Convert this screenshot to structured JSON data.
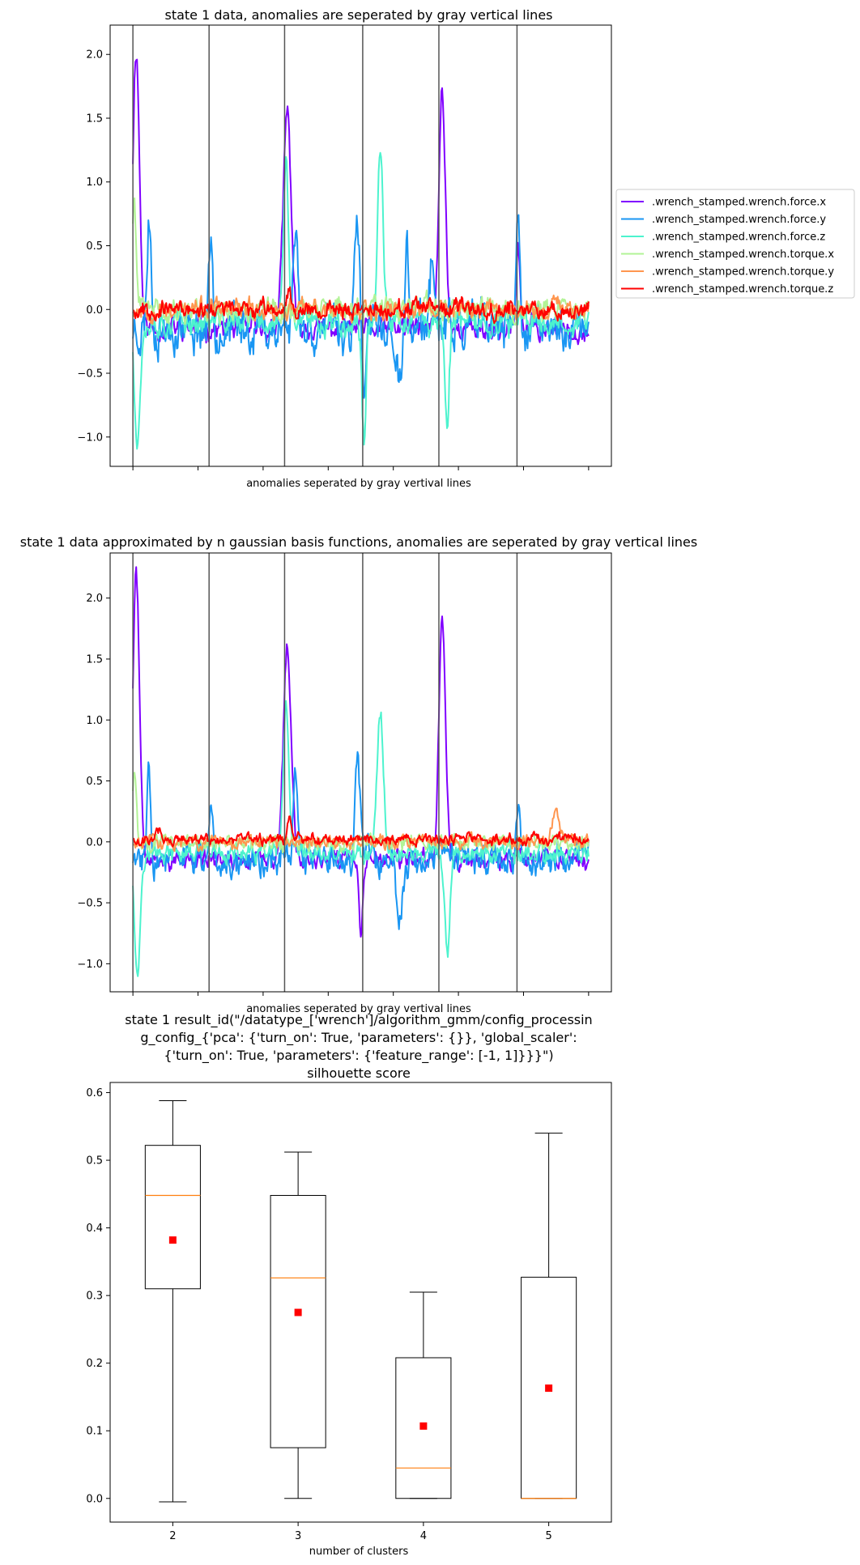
{
  "chart_data": [
    {
      "type": "line",
      "title": "state 1 data, anomalies are seperated by gray vertical lines",
      "xlabel": "anomalies seperated by gray vertival lines",
      "ylabel": "",
      "ylim": [
        -1.23,
        2.23
      ],
      "yticks": [
        -1.0,
        -0.5,
        0.0,
        0.5,
        1.0,
        1.5,
        2.0
      ],
      "ytick_labels": [
        "−1.0",
        "−0.5",
        "0.0",
        "0.5",
        "1.0",
        "1.5",
        "2.0"
      ],
      "xlim": [
        -0.35,
        7.35
      ],
      "xticks_unlabeled": [
        0,
        1,
        2,
        3,
        4,
        5,
        6,
        7
      ],
      "separators": [
        0,
        1.17,
        2.33,
        3.53,
        4.7,
        5.9
      ],
      "separator_color": "#555555",
      "legend_position": "outside-right",
      "series": [
        {
          "name": ".wrench_stamped.wrench.force.x",
          "color": "#8000ff",
          "spikes": [
            [
              0.05,
              2.05,
              0.05
            ],
            [
              2.37,
              1.55,
              0.06
            ],
            [
              4.75,
              1.72,
              0.05
            ],
            [
              5.92,
              0.45,
              0.03
            ]
          ],
          "base": -0.15,
          "noise": 0.08,
          "seed": 11
        },
        {
          "name": ".wrench_stamped.wrench.force.y",
          "color": "#1996f3",
          "spikes": [
            [
              0.25,
              0.75,
              0.03
            ],
            [
              1.2,
              0.6,
              0.03
            ],
            [
              2.5,
              0.6,
              0.04
            ],
            [
              3.45,
              0.6,
              0.04
            ],
            [
              3.55,
              -0.75,
              0.03
            ],
            [
              4.1,
              -0.6,
              0.05
            ],
            [
              4.2,
              0.55,
              0.03
            ],
            [
              4.6,
              0.5,
              0.03
            ],
            [
              5.92,
              0.75,
              0.03
            ]
          ],
          "base": -0.15,
          "noise": 0.16,
          "seed": 23
        },
        {
          "name": ".wrench_stamped.wrench.force.z",
          "color": "#4df3ce",
          "spikes": [
            [
              0.07,
              -1.05,
              0.04
            ],
            [
              2.35,
              1.1,
              0.04
            ],
            [
              3.8,
              1.3,
              0.04
            ],
            [
              3.55,
              -1.0,
              0.03
            ],
            [
              4.83,
              -0.95,
              0.03
            ]
          ],
          "base": -0.1,
          "noise": 0.09,
          "seed": 37
        },
        {
          "name": ".wrench_stamped.wrench.torque.x",
          "color": "#b2f396",
          "spikes": [
            [
              0.02,
              0.85,
              0.03
            ]
          ],
          "base": 0.0,
          "noise": 0.08,
          "seed": 41
        },
        {
          "name": ".wrench_stamped.wrench.torque.y",
          "color": "#ff964f",
          "spikes": [
            [
              6.5,
              0.15,
              0.05
            ]
          ],
          "base": 0.0,
          "noise": 0.07,
          "seed": 53
        },
        {
          "name": ".wrench_stamped.wrench.torque.z",
          "color": "#ff0000",
          "spikes": [
            [
              2.4,
              0.2,
              0.03
            ]
          ],
          "base": 0.0,
          "noise": 0.06,
          "seed": 67
        }
      ]
    },
    {
      "type": "line",
      "title": "state 1 data approximated by n gaussian basis functions, anomalies are seperated by gray vertical lines",
      "xlabel": "anomalies seperated by gray vertival lines",
      "ylabel": "",
      "ylim": [
        -1.23,
        2.37
      ],
      "yticks": [
        -1.0,
        -0.5,
        0.0,
        0.5,
        1.0,
        1.5,
        2.0
      ],
      "ytick_labels": [
        "−1.0",
        "−0.5",
        "0.0",
        "0.5",
        "1.0",
        "1.5",
        "2.0"
      ],
      "xlim": [
        -0.35,
        7.35
      ],
      "xticks_unlabeled": [
        0,
        1,
        2,
        3,
        4,
        5,
        6,
        7
      ],
      "separators": [
        0,
        1.17,
        2.33,
        3.53,
        4.7,
        5.9
      ],
      "separator_color": "#555555",
      "series": [
        {
          "color": "#8000ff",
          "spikes": [
            [
              0.05,
              2.2,
              0.05
            ],
            [
              2.37,
              1.55,
              0.06
            ],
            [
              4.75,
              1.85,
              0.05
            ],
            [
              3.5,
              -0.75,
              0.03
            ]
          ],
          "base": -0.15,
          "noise": 0.07,
          "seed": 71
        },
        {
          "color": "#1996f3",
          "spikes": [
            [
              0.25,
              0.65,
              0.03
            ],
            [
              1.2,
              0.35,
              0.03
            ],
            [
              2.5,
              0.55,
              0.04
            ],
            [
              3.45,
              0.65,
              0.04
            ],
            [
              4.1,
              -0.55,
              0.05
            ],
            [
              5.92,
              0.3,
              0.03
            ]
          ],
          "base": -0.15,
          "noise": 0.12,
          "seed": 83
        },
        {
          "color": "#4df3ce",
          "spikes": [
            [
              0.07,
              -1.1,
              0.04
            ],
            [
              2.35,
              1.1,
              0.04
            ],
            [
              3.8,
              1.05,
              0.05
            ],
            [
              4.83,
              -0.95,
              0.04
            ]
          ],
          "base": -0.1,
          "noise": 0.07,
          "seed": 97
        },
        {
          "color": "#b2f396",
          "spikes": [
            [
              0.02,
              0.55,
              0.03
            ]
          ],
          "base": 0.0,
          "noise": 0.06,
          "seed": 101
        },
        {
          "color": "#ff964f",
          "spikes": [
            [
              6.5,
              0.25,
              0.06
            ]
          ],
          "base": 0.0,
          "noise": 0.05,
          "seed": 113
        },
        {
          "color": "#ff0000",
          "spikes": [
            [
              2.4,
              0.2,
              0.03
            ],
            [
              0.4,
              0.1,
              0.04
            ]
          ],
          "base": 0.02,
          "noise": 0.04,
          "seed": 127
        }
      ]
    },
    {
      "type": "box",
      "title_lines": [
        "state 1 result_id(\"/datatype_['wrench']/algorithm_gmm/config_processin",
        "g_config_{'pca': {'turn_on': True, 'parameters': {}}, 'global_scaler':",
        "{'turn_on': True, 'parameters': {'feature_range': [-1, 1]}}}\")",
        "silhouette score"
      ],
      "xlabel": "number of clusters",
      "ylabel": "",
      "categories": [
        "2",
        "3",
        "4",
        "5"
      ],
      "ylim": [
        -0.035,
        0.615
      ],
      "yticks": [
        0.0,
        0.1,
        0.2,
        0.3,
        0.4,
        0.5,
        0.6
      ],
      "ytick_labels": [
        "0.0",
        "0.1",
        "0.2",
        "0.3",
        "0.4",
        "0.5",
        "0.6"
      ],
      "boxes": [
        {
          "category": "2",
          "whisker_low": -0.005,
          "q1": 0.31,
          "median": 0.448,
          "q3": 0.522,
          "whisker_high": 0.588,
          "mean": 0.382
        },
        {
          "category": "3",
          "whisker_low": 0.0,
          "q1": 0.075,
          "median": 0.326,
          "q3": 0.448,
          "whisker_high": 0.512,
          "mean": 0.275
        },
        {
          "category": "4",
          "whisker_low": 0.0,
          "q1": 0.0,
          "median": 0.045,
          "q3": 0.208,
          "whisker_high": 0.305,
          "mean": 0.107
        },
        {
          "category": "5",
          "whisker_low": 0.0,
          "q1": 0.0,
          "median": 0.0,
          "q3": 0.327,
          "whisker_high": 0.54,
          "mean": 0.163
        }
      ],
      "median_color": "#ff7f0e",
      "mean_marker_color": "#ff0000"
    }
  ]
}
